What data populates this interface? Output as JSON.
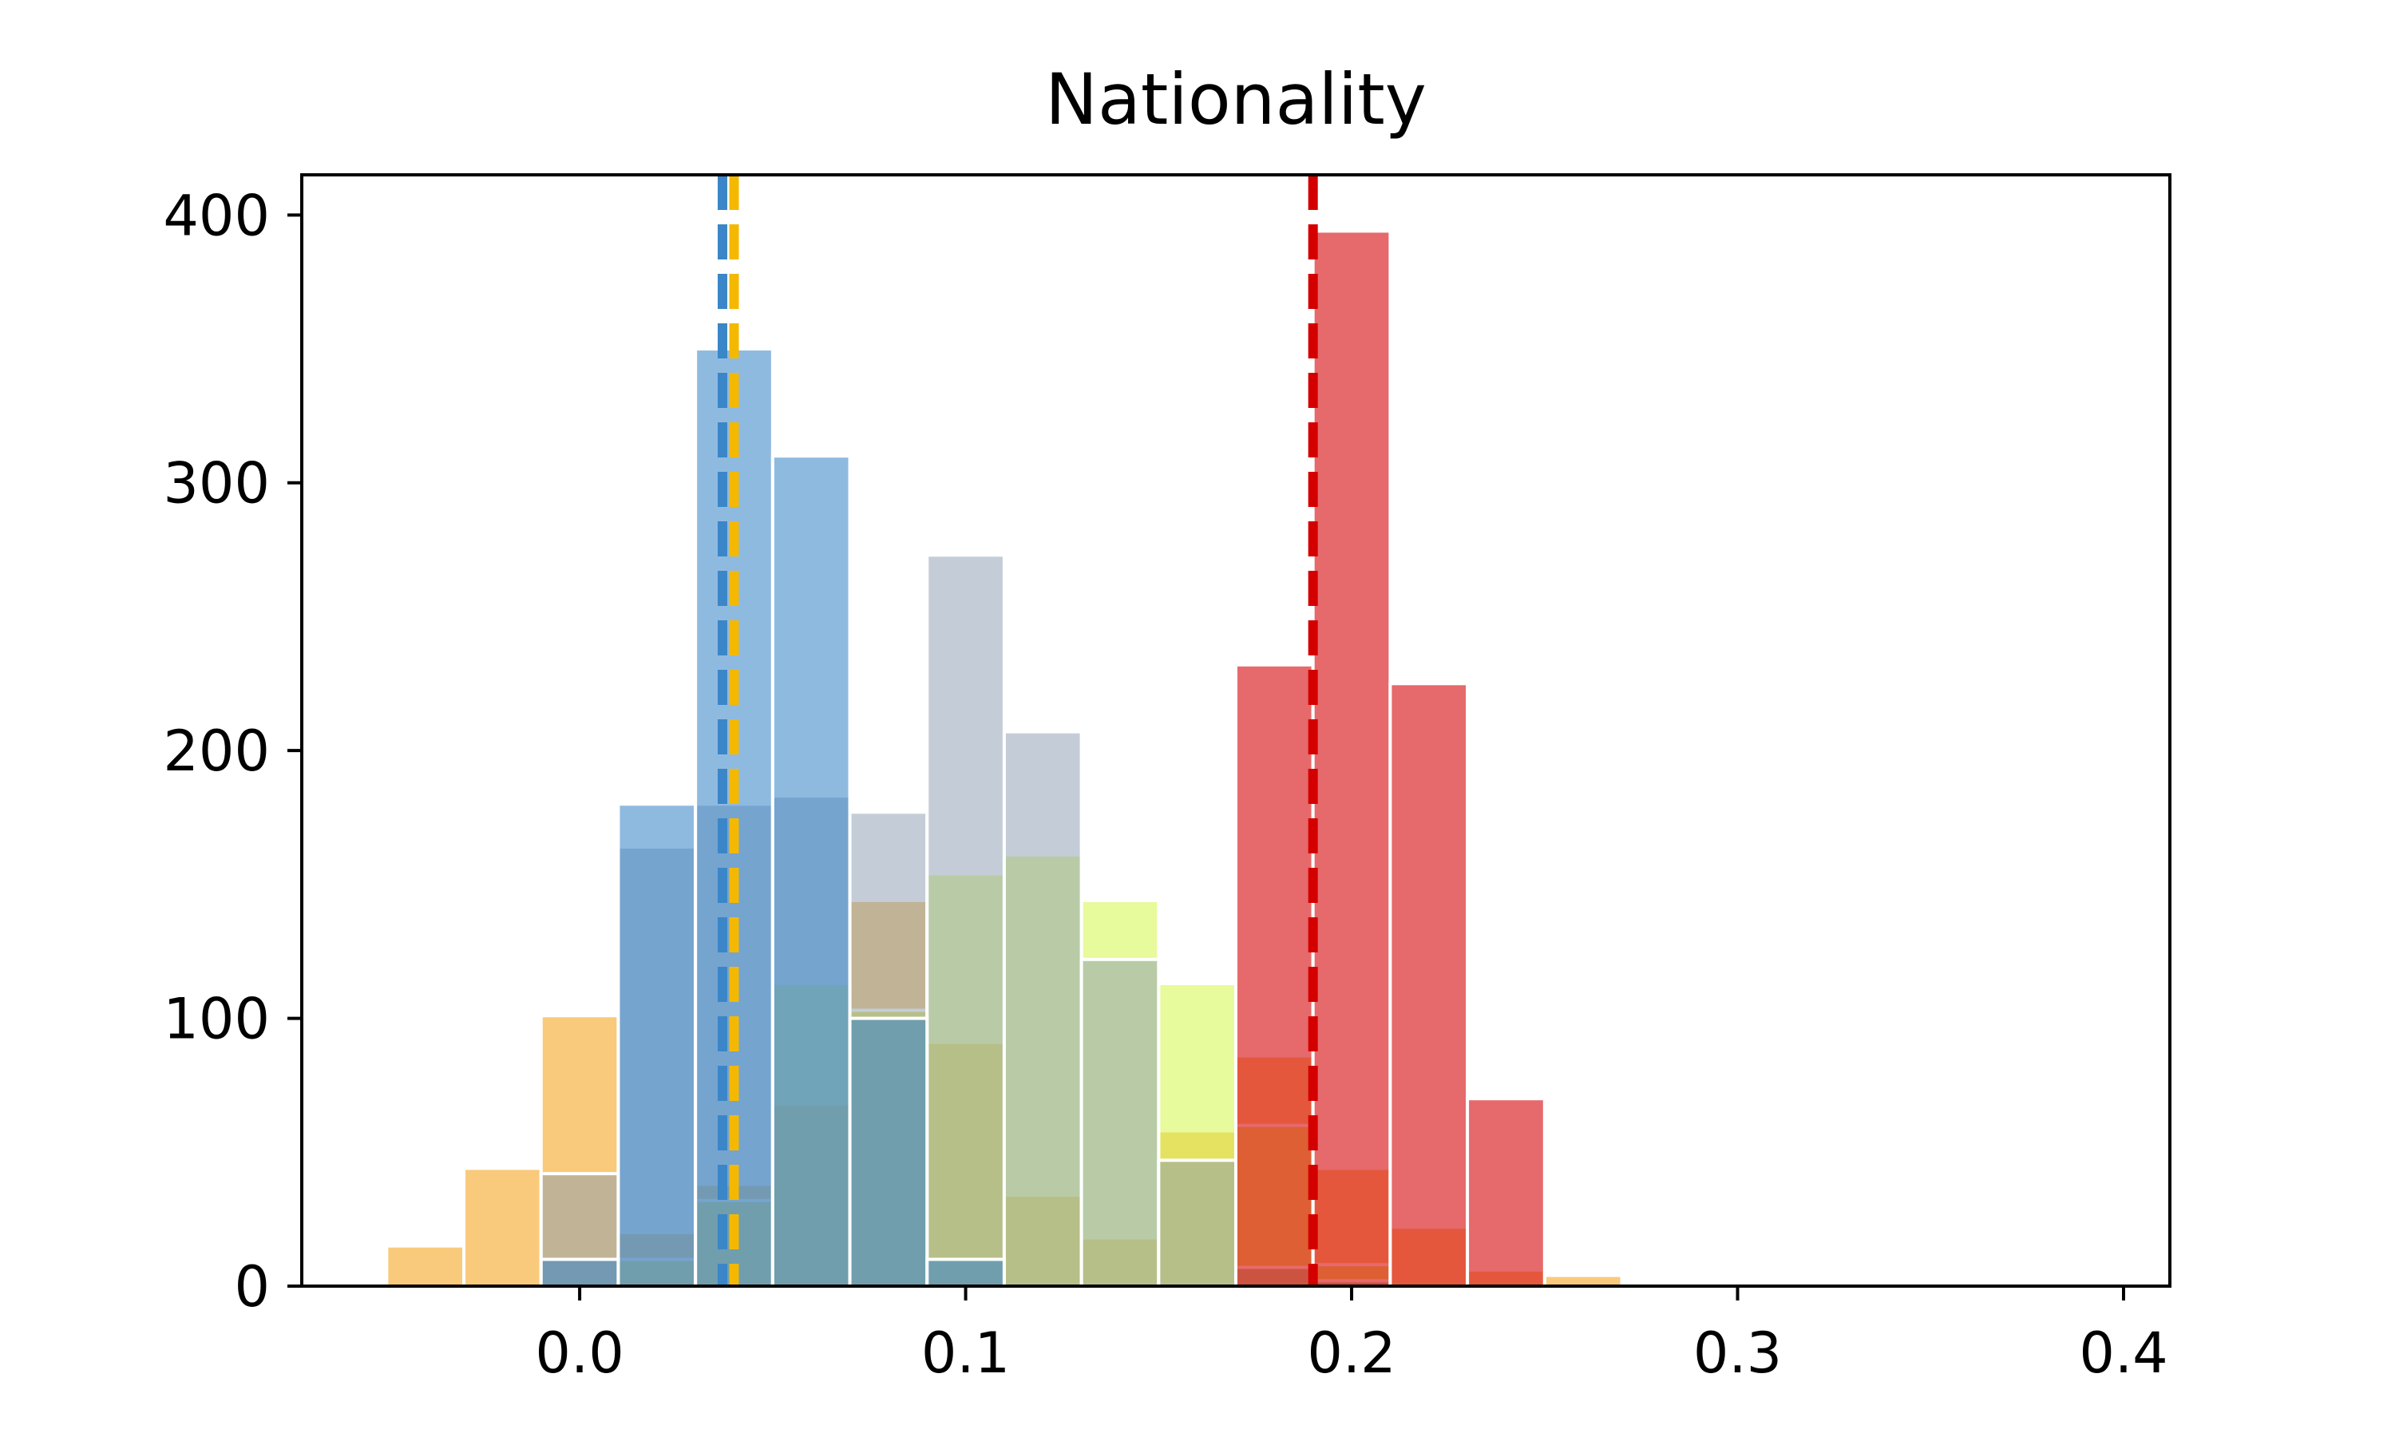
{
  "chart_data": {
    "type": "bar",
    "title": "Nationality",
    "xlabel": "",
    "ylabel": "",
    "xlim": [
      -0.072,
      0.412
    ],
    "ylim": [
      0,
      415
    ],
    "x_ticks": [
      {
        "value": 0.0,
        "label": "0.0"
      },
      {
        "value": 0.1,
        "label": "0.1"
      },
      {
        "value": 0.2,
        "label": "0.2"
      },
      {
        "value": 0.3,
        "label": "0.3"
      },
      {
        "value": 0.4,
        "label": "0.4"
      }
    ],
    "y_ticks": [
      {
        "value": 0,
        "label": "0"
      },
      {
        "value": 100,
        "label": "100"
      },
      {
        "value": 200,
        "label": "200"
      },
      {
        "value": 300,
        "label": "300"
      },
      {
        "value": 400,
        "label": "400"
      }
    ],
    "bin_width": 0.02,
    "grid": false,
    "legend": "none",
    "series": [
      {
        "color": "#f5a623",
        "opacity": 0.6,
        "bins": [
          {
            "x": -0.04,
            "value": 15
          },
          {
            "x": -0.02,
            "value": 44
          },
          {
            "x": 0.0,
            "value": 101
          },
          {
            "x": 0.02,
            "value": 20
          },
          {
            "x": 0.04,
            "value": 38
          },
          {
            "x": 0.06,
            "value": 68
          },
          {
            "x": 0.08,
            "value": 144
          },
          {
            "x": 0.1,
            "value": 91
          },
          {
            "x": 0.12,
            "value": 34
          },
          {
            "x": 0.14,
            "value": 18
          },
          {
            "x": 0.16,
            "value": 58
          },
          {
            "x": 0.18,
            "value": 86
          },
          {
            "x": 0.2,
            "value": 44
          },
          {
            "x": 0.22,
            "value": 22
          },
          {
            "x": 0.24,
            "value": 6
          },
          {
            "x": 0.26,
            "value": 4
          }
        ]
      },
      {
        "color": "#d4f54a",
        "opacity": 0.55,
        "bins": [
          {
            "x": 0.02,
            "value": 10
          },
          {
            "x": 0.04,
            "value": 32
          },
          {
            "x": 0.06,
            "value": 113
          },
          {
            "x": 0.08,
            "value": 103
          },
          {
            "x": 0.1,
            "value": 154
          },
          {
            "x": 0.12,
            "value": 161
          },
          {
            "x": 0.14,
            "value": 144
          },
          {
            "x": 0.16,
            "value": 113
          },
          {
            "x": 0.18,
            "value": 60
          },
          {
            "x": 0.2,
            "value": 8
          }
        ]
      },
      {
        "color": "#8a9bb0",
        "opacity": 0.5,
        "bins": [
          {
            "x": 0.0,
            "value": 42
          },
          {
            "x": 0.02,
            "value": 164
          },
          {
            "x": 0.04,
            "value": 180
          },
          {
            "x": 0.06,
            "value": 183
          },
          {
            "x": 0.08,
            "value": 177
          },
          {
            "x": 0.1,
            "value": 273
          },
          {
            "x": 0.12,
            "value": 207
          },
          {
            "x": 0.14,
            "value": 122
          },
          {
            "x": 0.16,
            "value": 47
          },
          {
            "x": 0.18,
            "value": 7
          },
          {
            "x": 0.2,
            "value": 2
          }
        ]
      },
      {
        "color": "#3a86c8",
        "opacity": 0.57,
        "bins": [
          {
            "x": 0.0,
            "value": 10
          },
          {
            "x": 0.02,
            "value": 180
          },
          {
            "x": 0.04,
            "value": 350
          },
          {
            "x": 0.06,
            "value": 310
          },
          {
            "x": 0.08,
            "value": 100
          },
          {
            "x": 0.1,
            "value": 10
          }
        ]
      },
      {
        "color": "#d9191c",
        "opacity": 0.65,
        "bins": [
          {
            "x": 0.18,
            "value": 232
          },
          {
            "x": 0.2,
            "value": 394
          },
          {
            "x": 0.22,
            "value": 225
          },
          {
            "x": 0.24,
            "value": 70
          }
        ]
      }
    ],
    "reference_lines": [
      {
        "x": 0.037,
        "color": "#3a86c8",
        "style": "dashed"
      },
      {
        "x": 0.04,
        "color": "#f5b800",
        "style": "dashed"
      },
      {
        "x": 0.19,
        "color": "#d40000",
        "style": "dashed"
      }
    ]
  }
}
